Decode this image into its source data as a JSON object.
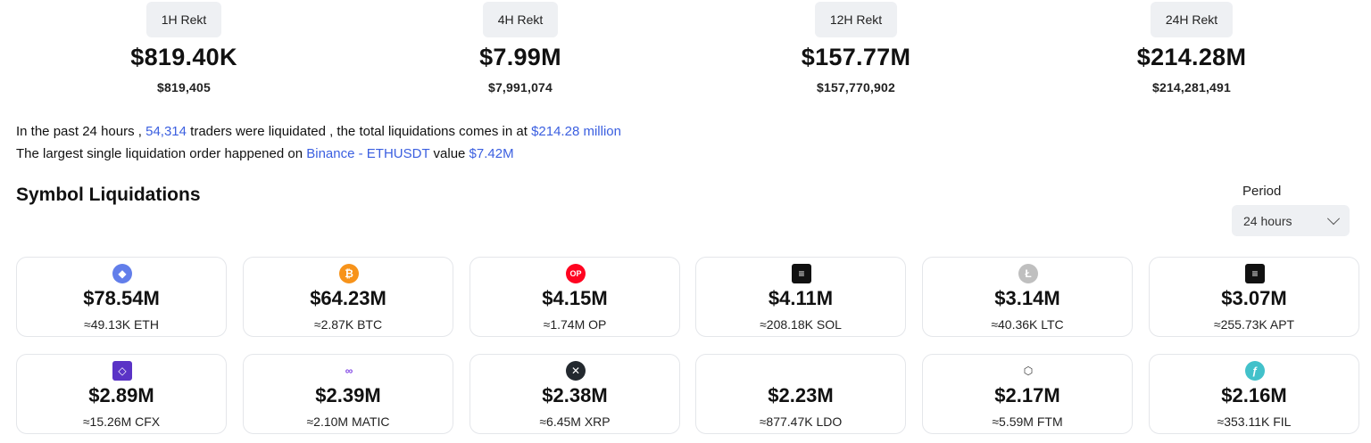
{
  "rekt": [
    {
      "tab": "1H Rekt",
      "value": "$819.40K",
      "exact": "$819,405"
    },
    {
      "tab": "4H Rekt",
      "value": "$7.99M",
      "exact": "$7,991,074"
    },
    {
      "tab": "12H Rekt",
      "value": "$157.77M",
      "exact": "$157,770,902"
    },
    {
      "tab": "24H Rekt",
      "value": "$214.28M",
      "exact": "$214,281,491"
    }
  ],
  "summary": {
    "line1_a": "In the past 24 hours ,",
    "traders": "54,314",
    "line1_b": "traders were liquidated , the total liquidations comes in at",
    "total": "$214.28 million",
    "line2_a": "The largest single liquidation order happened on",
    "exchange": "Binance - ETHUSDT",
    "line2_b": "value",
    "largest": "$7.42M"
  },
  "section_title": "Symbol Liquidations",
  "period": {
    "label": "Period",
    "selected": "24 hours"
  },
  "symbols": [
    {
      "value": "$78.54M",
      "amount": "≈49.13K ETH",
      "icon": "eth-icon",
      "color": "#627eea",
      "glyph": "◆"
    },
    {
      "value": "$64.23M",
      "amount": "≈2.87K BTC",
      "icon": "btc-icon",
      "color": "#f7931a",
      "glyph": "₿"
    },
    {
      "value": "$4.15M",
      "amount": "≈1.74M OP",
      "icon": "op-icon",
      "color": "#ff0420",
      "glyph": "OP"
    },
    {
      "value": "$4.11M",
      "amount": "≈208.18K SOL",
      "icon": "sol-icon",
      "color": "#111111",
      "glyph": "≡"
    },
    {
      "value": "$3.14M",
      "amount": "≈40.36K LTC",
      "icon": "ltc-icon",
      "color": "#bfbfbf",
      "glyph": "Ł"
    },
    {
      "value": "$3.07M",
      "amount": "≈255.73K APT",
      "icon": "apt-icon",
      "color": "#111111",
      "glyph": "≡"
    },
    {
      "value": "$2.89M",
      "amount": "≈15.26M CFX",
      "icon": "cfx-icon",
      "color": "#5a33c6",
      "glyph": "◇"
    },
    {
      "value": "$2.39M",
      "amount": "≈2.10M MATIC",
      "icon": "matic-icon",
      "color": "#ffffff",
      "glyph": "∞"
    },
    {
      "value": "$2.38M",
      "amount": "≈6.45M XRP",
      "icon": "xrp-icon",
      "color": "#23292f",
      "glyph": "✕"
    },
    {
      "value": "$2.23M",
      "amount": "≈877.47K LDO",
      "icon": "ldo-icon",
      "color": "#ffffff",
      "glyph": ""
    },
    {
      "value": "$2.17M",
      "amount": "≈5.59M FTM",
      "icon": "ftm-icon",
      "color": "#ffffff",
      "glyph": "⬡"
    },
    {
      "value": "$2.16M",
      "amount": "≈353.11K FIL",
      "icon": "fil-icon",
      "color": "#42c1ca",
      "glyph": "ƒ"
    }
  ]
}
